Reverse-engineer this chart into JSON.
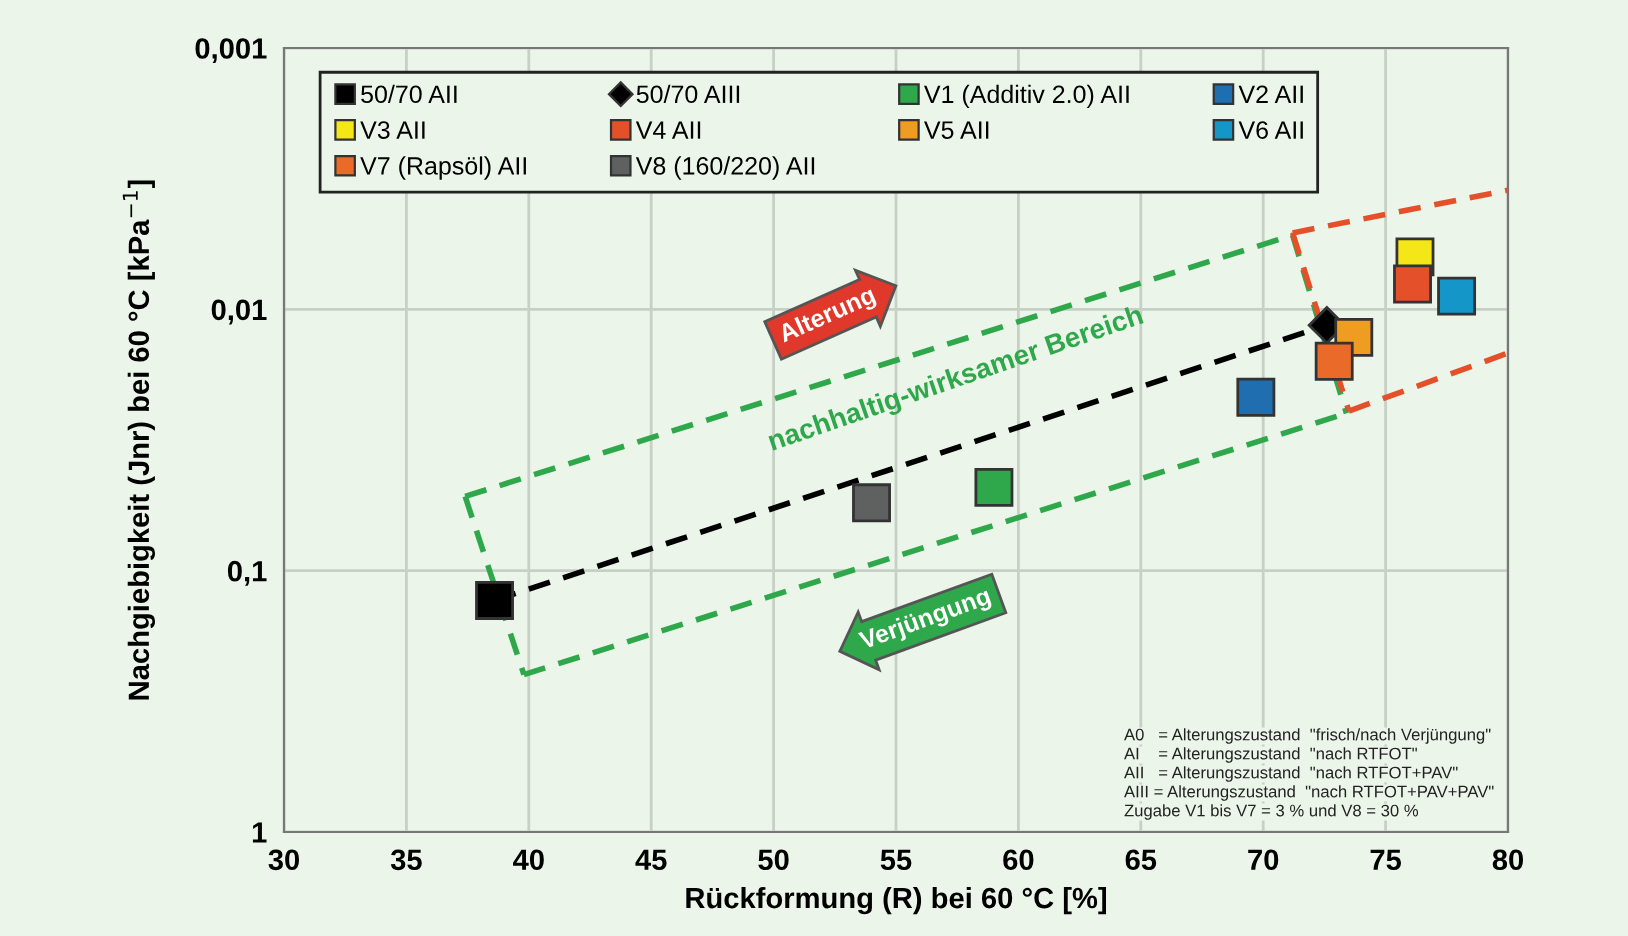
{
  "chart_data": {
    "type": "scatter",
    "xlabel": "Rückformung (R) bei 60 °C [%]",
    "ylabel": "Nachgiebigkeit (Jnr) bei 60 °C [kPa$^{−1}$]",
    "xlim": [
      30,
      80
    ],
    "xticks": [
      30,
      35,
      40,
      45,
      50,
      55,
      60,
      65,
      70,
      75,
      80
    ],
    "ylim": [
      1,
      0.001
    ],
    "yticks": [
      {
        "value": 1,
        "label": "1"
      },
      {
        "value": 0.1,
        "label": "0,1"
      },
      {
        "value": 0.01,
        "label": "0,01"
      },
      {
        "value": 0.001,
        "label": "0,001"
      }
    ],
    "log": "y",
    "grid": true,
    "legend": "top",
    "marker": "square",
    "series": [
      {
        "type": "line",
        "color": "#000000",
        "line_style": "dashed",
        "marker": "none",
        "x": [
          38.6,
          72.6
        ],
        "values": [
          0.13,
          0.0115
        ]
      },
      {
        "type": "line",
        "color": "#2ea84a",
        "line_style": "dashed",
        "marker": "none",
        "x": [
          37.4,
          71.2
        ],
        "values": [
          0.052,
          0.0052
        ]
      },
      {
        "type": "line",
        "color": "#2ea84a",
        "line_style": "dashed",
        "marker": "none",
        "x": [
          71.2,
          73.4
        ],
        "values": [
          0.0052,
          0.025
        ]
      },
      {
        "type": "line",
        "color": "#2ea84a",
        "line_style": "dashed",
        "marker": "none",
        "x": [
          39.8,
          73.4
        ],
        "values": [
          0.25,
          0.025
        ]
      },
      {
        "type": "line",
        "color": "#2ea84a",
        "line_style": "dashed",
        "marker": "none",
        "x": [
          37.4,
          39.8
        ],
        "values": [
          0.052,
          0.25
        ]
      },
      {
        "type": "line",
        "color": "#e4502a",
        "line_style": "dashed",
        "marker": "none",
        "x": [
          71.2,
          80
        ],
        "values": [
          0.0051,
          0.0035
        ]
      },
      {
        "type": "line",
        "color": "#e4502a",
        "line_style": "dashed",
        "marker": "none",
        "x": [
          71.2,
          73.5
        ],
        "values": [
          0.0051,
          0.0245
        ]
      },
      {
        "type": "line",
        "color": "#e4502a",
        "line_style": "dashed",
        "marker": "none",
        "x": [
          73.5,
          80
        ],
        "values": [
          0.0245,
          0.0147
        ]
      },
      {
        "name": "50/70 AII",
        "color": "#000000",
        "x": [
          38.6
        ],
        "values": [
          0.13
        ]
      },
      {
        "name": "50/70 AIII",
        "color": "#000000",
        "marker": "diamond",
        "x": [
          72.6
        ],
        "values": [
          0.0115
        ]
      },
      {
        "name": "V1 (Additiv 2.0) AII",
        "color": "#2ea84a",
        "x": [
          59.0
        ],
        "values": [
          0.048
        ]
      },
      {
        "name": "V2 AII",
        "color": "#1f6eb0",
        "x": [
          69.7
        ],
        "values": [
          0.0217
        ]
      },
      {
        "name": "V3 AII",
        "color": "#f5e617",
        "x": [
          76.2
        ],
        "values": [
          0.0063
        ]
      },
      {
        "name": "V4 AII",
        "color": "#e4502a",
        "x": [
          76.1
        ],
        "values": [
          0.008
        ]
      },
      {
        "name": "V5 AII",
        "color": "#ef9c22",
        "x": [
          73.7
        ],
        "values": [
          0.0128
        ]
      },
      {
        "name": "V6 AII",
        "color": "#1596c8",
        "x": [
          77.9
        ],
        "values": [
          0.0089
        ]
      },
      {
        "name": "V7 (Rapsöl) AII",
        "color": "#ea6a2a",
        "x": [
          72.9
        ],
        "values": [
          0.0158
        ]
      },
      {
        "name": "V8 (160/220) AII",
        "color": "#5f6060",
        "x": [
          54.0
        ],
        "values": [
          0.055
        ]
      }
    ],
    "annotations": [
      "Alterung",
      "nachhaltig-wirksamer Bereich",
      "Verjüngung",
      "A0   = Alterungszustand  \"frisch/nach Verjüngung\"",
      "AI    = Alterungszustand  \"nach RTFOT\"",
      "AII   = Alterungszustand  \"nach RTFOT+PAV\"",
      "AIII = Alterungszustand  \"nach RTFOT+PAV+PAV\"",
      "Zugabe V1 bis V7 = 3 % und V8 = 30 %"
    ]
  }
}
